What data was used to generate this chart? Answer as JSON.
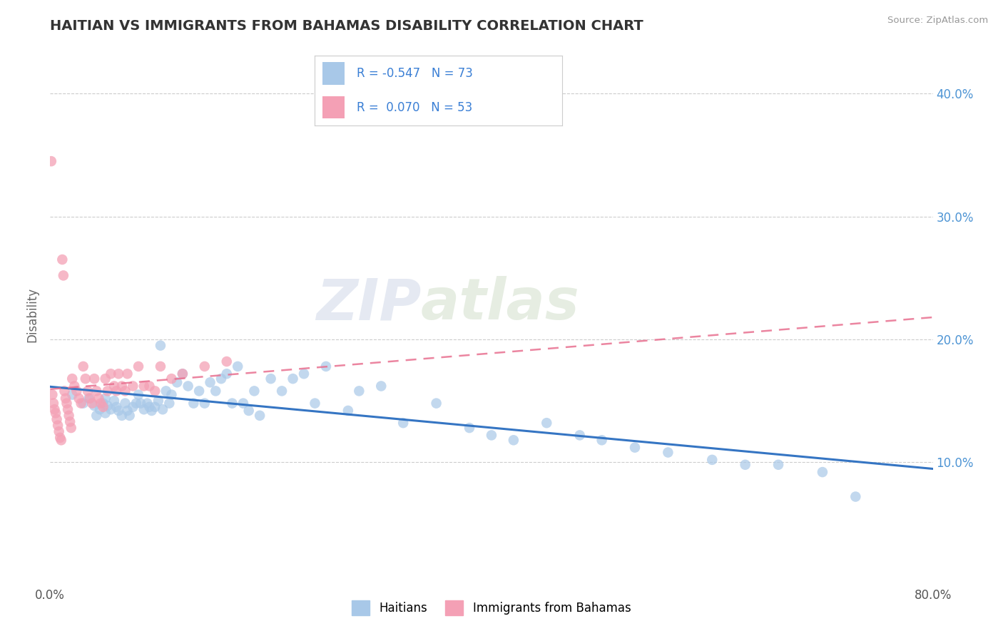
{
  "title": "HAITIAN VS IMMIGRANTS FROM BAHAMAS DISABILITY CORRELATION CHART",
  "source": "Source: ZipAtlas.com",
  "ylabel": "Disability",
  "xlim": [
    0.0,
    0.8
  ],
  "ylim": [
    0.0,
    0.44
  ],
  "ytick_positions": [
    0.1,
    0.2,
    0.3,
    0.4
  ],
  "ytick_labels": [
    "10.0%",
    "20.0%",
    "30.0%",
    "40.0%"
  ],
  "blue_R": -0.547,
  "blue_N": 73,
  "pink_R": 0.07,
  "pink_N": 53,
  "blue_color": "#a8c8e8",
  "pink_color": "#f4a0b5",
  "blue_line_color": "#3575c3",
  "pink_line_color": "#e87090",
  "watermark_zip": "ZIP",
  "watermark_atlas": "atlas",
  "legend_label_blue": "Haitians",
  "legend_label_pink": "Immigrants from Bahamas",
  "blue_scatter_x": [
    0.02,
    0.03,
    0.035,
    0.04,
    0.042,
    0.045,
    0.048,
    0.05,
    0.05,
    0.052,
    0.055,
    0.058,
    0.06,
    0.062,
    0.065,
    0.068,
    0.07,
    0.072,
    0.075,
    0.078,
    0.08,
    0.082,
    0.085,
    0.088,
    0.09,
    0.092,
    0.095,
    0.098,
    0.1,
    0.102,
    0.105,
    0.108,
    0.11,
    0.115,
    0.12,
    0.125,
    0.13,
    0.135,
    0.14,
    0.145,
    0.15,
    0.155,
    0.16,
    0.165,
    0.17,
    0.175,
    0.18,
    0.185,
    0.19,
    0.2,
    0.21,
    0.22,
    0.23,
    0.24,
    0.25,
    0.27,
    0.28,
    0.3,
    0.32,
    0.35,
    0.38,
    0.4,
    0.42,
    0.45,
    0.48,
    0.5,
    0.53,
    0.56,
    0.6,
    0.63,
    0.66,
    0.7,
    0.73
  ],
  "blue_scatter_y": [
    0.155,
    0.148,
    0.152,
    0.146,
    0.138,
    0.143,
    0.148,
    0.14,
    0.152,
    0.146,
    0.143,
    0.15,
    0.145,
    0.142,
    0.138,
    0.148,
    0.142,
    0.138,
    0.145,
    0.148,
    0.155,
    0.148,
    0.143,
    0.148,
    0.145,
    0.142,
    0.145,
    0.15,
    0.195,
    0.143,
    0.158,
    0.148,
    0.155,
    0.165,
    0.172,
    0.162,
    0.148,
    0.158,
    0.148,
    0.165,
    0.158,
    0.168,
    0.172,
    0.148,
    0.178,
    0.148,
    0.142,
    0.158,
    0.138,
    0.168,
    0.158,
    0.168,
    0.172,
    0.148,
    0.178,
    0.142,
    0.158,
    0.162,
    0.132,
    0.148,
    0.128,
    0.122,
    0.118,
    0.132,
    0.122,
    0.118,
    0.112,
    0.108,
    0.102,
    0.098,
    0.098,
    0.092,
    0.072
  ],
  "pink_scatter_x": [
    0.001,
    0.002,
    0.003,
    0.004,
    0.005,
    0.006,
    0.007,
    0.008,
    0.009,
    0.01,
    0.011,
    0.012,
    0.013,
    0.014,
    0.015,
    0.016,
    0.017,
    0.018,
    0.019,
    0.02,
    0.022,
    0.024,
    0.026,
    0.028,
    0.03,
    0.032,
    0.034,
    0.036,
    0.038,
    0.04,
    0.042,
    0.044,
    0.046,
    0.048,
    0.05,
    0.052,
    0.055,
    0.058,
    0.06,
    0.062,
    0.065,
    0.068,
    0.07,
    0.075,
    0.08,
    0.085,
    0.09,
    0.095,
    0.1,
    0.11,
    0.12,
    0.14,
    0.16
  ],
  "pink_scatter_y": [
    0.345,
    0.155,
    0.148,
    0.143,
    0.14,
    0.135,
    0.13,
    0.125,
    0.12,
    0.118,
    0.265,
    0.252,
    0.158,
    0.152,
    0.148,
    0.143,
    0.138,
    0.133,
    0.128,
    0.168,
    0.162,
    0.158,
    0.152,
    0.148,
    0.178,
    0.168,
    0.158,
    0.152,
    0.148,
    0.168,
    0.158,
    0.152,
    0.148,
    0.145,
    0.168,
    0.158,
    0.172,
    0.162,
    0.158,
    0.172,
    0.162,
    0.158,
    0.172,
    0.162,
    0.178,
    0.162,
    0.162,
    0.158,
    0.178,
    0.168,
    0.172,
    0.178,
    0.182
  ]
}
